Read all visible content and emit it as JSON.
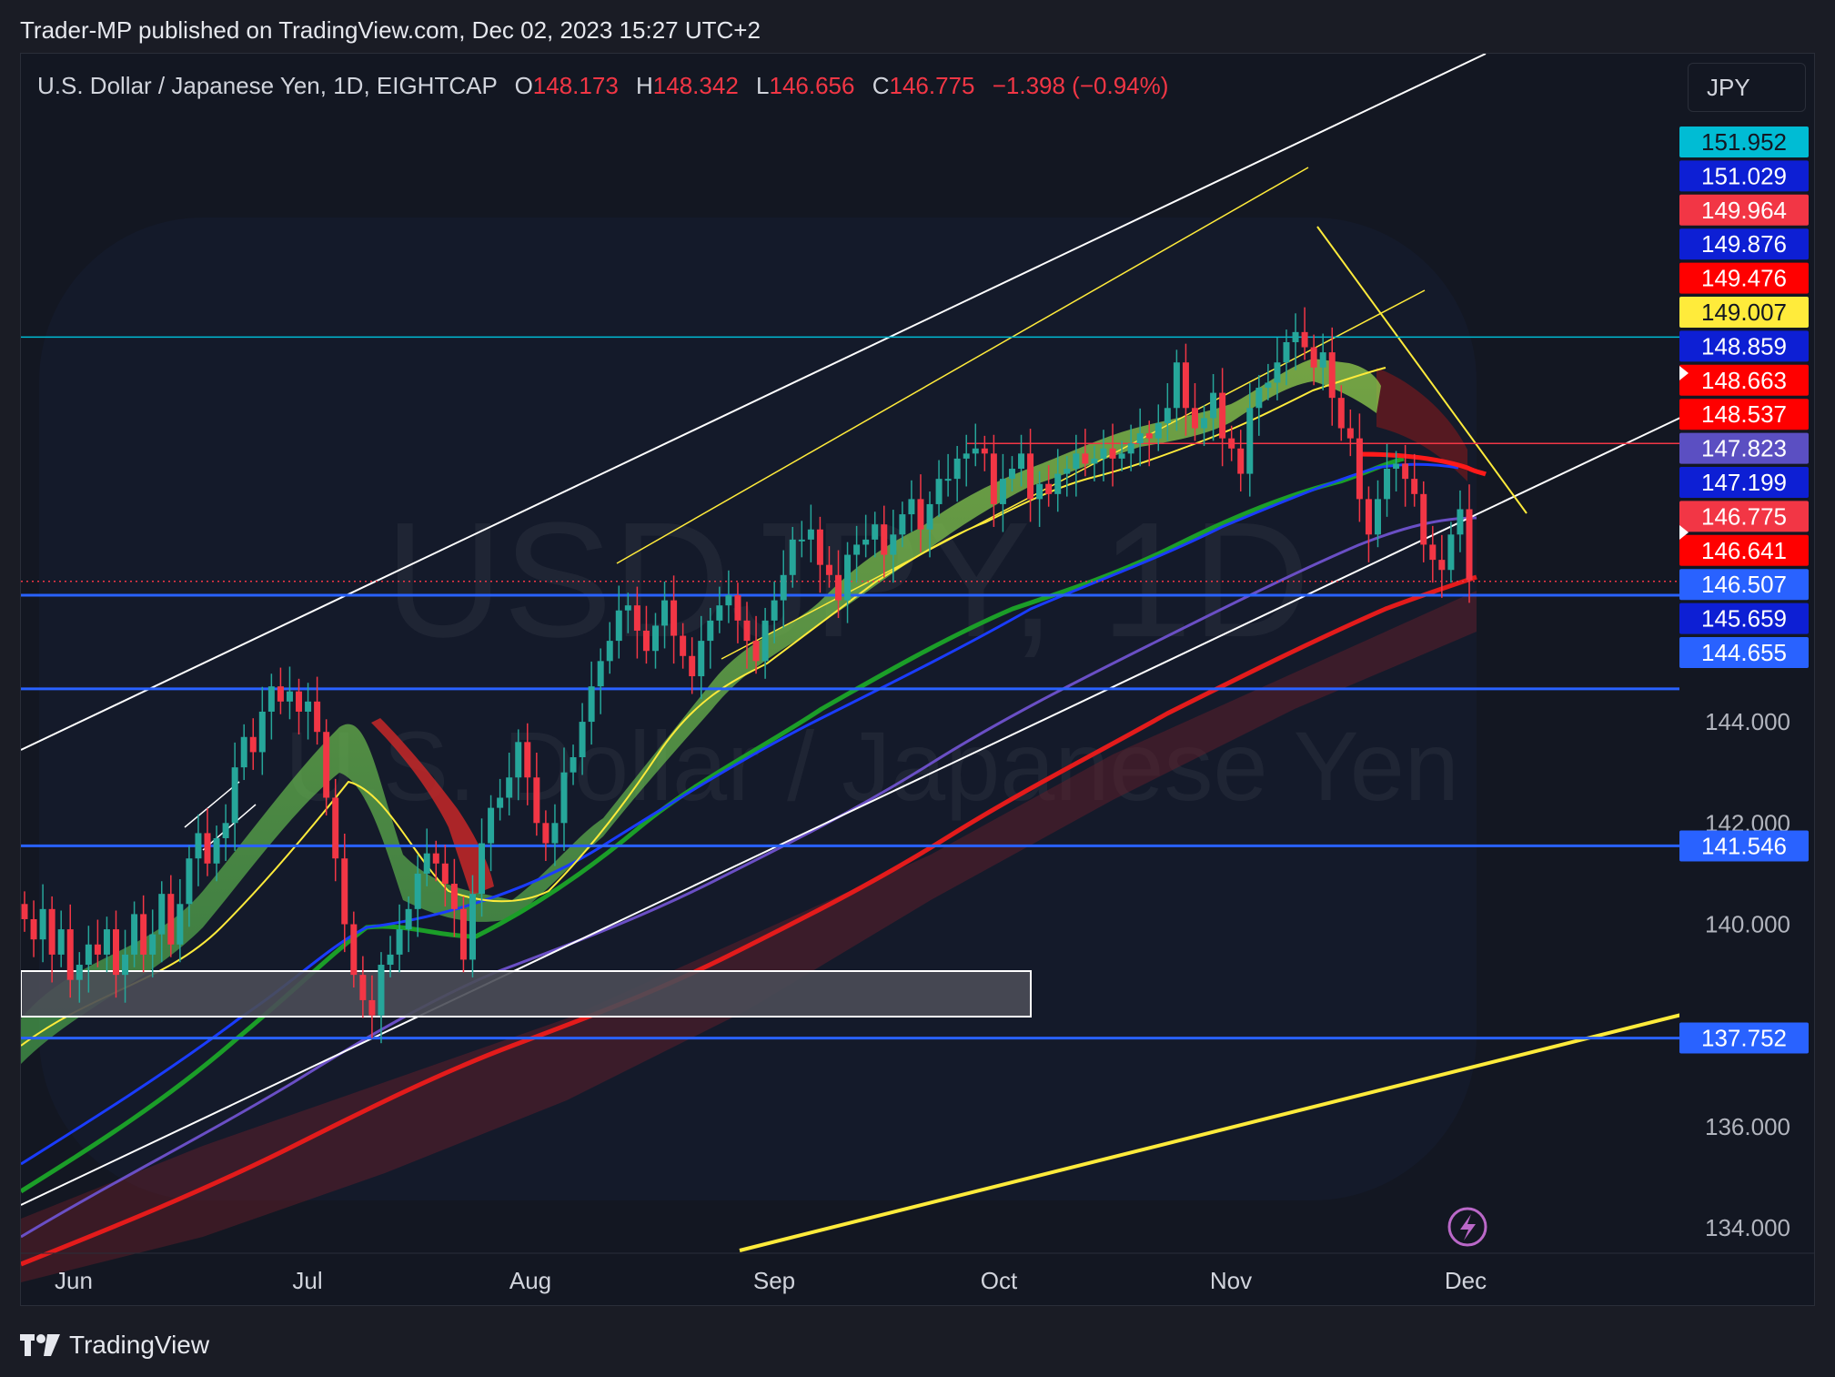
{
  "header": {
    "publisher_line": "Trader-MP published on TradingView.com, Dec 02, 2023 15:27 UTC+2"
  },
  "legend": {
    "symbol": "U.S. Dollar / Japanese Yen, 1D, EIGHTCAP",
    "open_label": "O",
    "open": "148.173",
    "high_label": "H",
    "high": "148.342",
    "low_label": "L",
    "low": "146.656",
    "close_label": "C",
    "close": "146.775",
    "change": "−1.398 (−0.94%)",
    "value_color": "#f23645"
  },
  "currency_button": {
    "label": "JPY"
  },
  "watermark": {
    "ticker": "USDJPY, 1D",
    "name": "U.S. Dollar / Japanese Yen"
  },
  "footer": {
    "brand": "TradingView"
  },
  "alert_icon": "lightning-bolt-icon",
  "colors": {
    "up": "#26a69a",
    "down": "#f23645",
    "background": "#131722",
    "level_line": "#2962ff",
    "channel": "#ffffff",
    "trend_yellow": "#ffeb3b"
  },
  "chart_data": {
    "type": "candlestick",
    "symbol": "USDJPY",
    "timeframe": "1D",
    "x_axis": {
      "tick_labels": [
        "Jun",
        "Jul",
        "Aug",
        "Sep",
        "Oct",
        "Nov",
        "Dec"
      ]
    },
    "y_axis": {
      "tick_labels": [
        "134.000",
        "136.000",
        "140.000",
        "142.000",
        "144.000"
      ],
      "range": [
        133.5,
        157.2
      ]
    },
    "price_labels": [
      {
        "value": 151.952,
        "text": "151.952",
        "bg": "#00bcd4",
        "fg": "#131722"
      },
      {
        "value": 151.029,
        "text": "151.029",
        "bg": "#0d1fd4",
        "fg": "#ffffff"
      },
      {
        "value": 149.964,
        "text": "149.964",
        "bg": "#f23645",
        "fg": "#ffffff"
      },
      {
        "value": 149.876,
        "text": "149.876",
        "bg": "#0d1fd4",
        "fg": "#ffffff"
      },
      {
        "value": 149.476,
        "text": "149.476",
        "bg": "#ff0000",
        "fg": "#ffffff"
      },
      {
        "value": 149.007,
        "text": "149.007",
        "bg": "#ffeb3b",
        "fg": "#131722"
      },
      {
        "value": 148.859,
        "text": "148.859",
        "bg": "#0d1fd4",
        "fg": "#ffffff"
      },
      {
        "value": 148.663,
        "text": "148.663",
        "bg": "#ff0000",
        "fg": "#ffffff"
      },
      {
        "value": 148.537,
        "text": "148.537",
        "bg": "#ff0000",
        "fg": "#ffffff"
      },
      {
        "value": 147.823,
        "text": "147.823",
        "bg": "#5b4fc2",
        "fg": "#ffffff"
      },
      {
        "value": 147.199,
        "text": "147.199",
        "bg": "#0d1fd4",
        "fg": "#ffffff"
      },
      {
        "value": 146.775,
        "text": "146.775",
        "bg": "#f23645",
        "fg": "#ffffff"
      },
      {
        "value": 146.641,
        "text": "146.641",
        "bg": "#ff0000",
        "fg": "#ffffff"
      },
      {
        "value": 146.507,
        "text": "146.507",
        "bg": "#2962ff",
        "fg": "#ffffff"
      },
      {
        "value": 145.659,
        "text": "145.659",
        "bg": "#0d1fd4",
        "fg": "#ffffff"
      },
      {
        "value": 144.655,
        "text": "144.655",
        "bg": "#2962ff",
        "fg": "#ffffff"
      },
      {
        "value": 141.546,
        "text": "141.546",
        "bg": "#2962ff",
        "fg": "#ffffff"
      },
      {
        "value": 137.752,
        "text": "137.752",
        "bg": "#2962ff",
        "fg": "#ffffff"
      }
    ],
    "horizontal_levels": [
      {
        "value": 151.6,
        "color": "#00bcd4"
      },
      {
        "value": 149.5,
        "color": "#f23645"
      },
      {
        "value": 146.5,
        "color": "#2962ff"
      },
      {
        "value": 144.65,
        "color": "#2962ff"
      },
      {
        "value": 141.55,
        "color": "#2962ff"
      },
      {
        "value": 137.75,
        "color": "#2962ff"
      }
    ],
    "last_price": 146.775,
    "close_approx": [
      140.1,
      139.7,
      140.3,
      139.4,
      139.9,
      138.9,
      139.2,
      139.6,
      139.4,
      139.9,
      139.0,
      139.4,
      140.2,
      139.4,
      139.8,
      140.6,
      139.6,
      140.4,
      141.3,
      141.8,
      141.2,
      141.7,
      142.0,
      143.1,
      143.7,
      143.4,
      144.2,
      144.7,
      144.4,
      144.6,
      144.2,
      144.4,
      143.8,
      142.5,
      141.3,
      140.0,
      139.0,
      138.5,
      138.2,
      139.2,
      139.4,
      139.9,
      140.3,
      141.0,
      141.4,
      141.2,
      140.8,
      140.3,
      139.3,
      140.6,
      141.6,
      142.3,
      142.5,
      142.9,
      143.6,
      142.9,
      142.0,
      141.6,
      142.0,
      143.0,
      143.3,
      144.0,
      144.7,
      145.2,
      145.6,
      146.2,
      146.3,
      145.8,
      145.4,
      145.9,
      146.4,
      145.7,
      145.3,
      144.9,
      145.6,
      146.0,
      146.3,
      146.5,
      146.0,
      145.6,
      145.2,
      146.0,
      146.4,
      146.9,
      147.6,
      147.6,
      147.8,
      147.1,
      146.9,
      146.4,
      147.3,
      147.5,
      147.6,
      147.9,
      147.3,
      147.7,
      148.1,
      148.4,
      147.8,
      148.3,
      148.8,
      148.8,
      149.2,
      149.3,
      149.4,
      149.3,
      148.3,
      148.8,
      149.0,
      149.3,
      148.4,
      148.7,
      148.5,
      148.9,
      149.0,
      149.3,
      149.1,
      149.2,
      149.4,
      149.2,
      149.3,
      149.5,
      149.7,
      149.6,
      149.9,
      150.2,
      151.1,
      150.2,
      149.8,
      150.0,
      150.5,
      149.6,
      149.4,
      148.9,
      150.2,
      150.6,
      150.7,
      151.1,
      151.5,
      151.7,
      151.4,
      151.0,
      151.3,
      150.4,
      149.8,
      149.6,
      148.4,
      147.7,
      148.4,
      149.0,
      149.1,
      148.8,
      148.5,
      147.5,
      147.2,
      147.0,
      147.7,
      148.2,
      146.8
    ]
  }
}
